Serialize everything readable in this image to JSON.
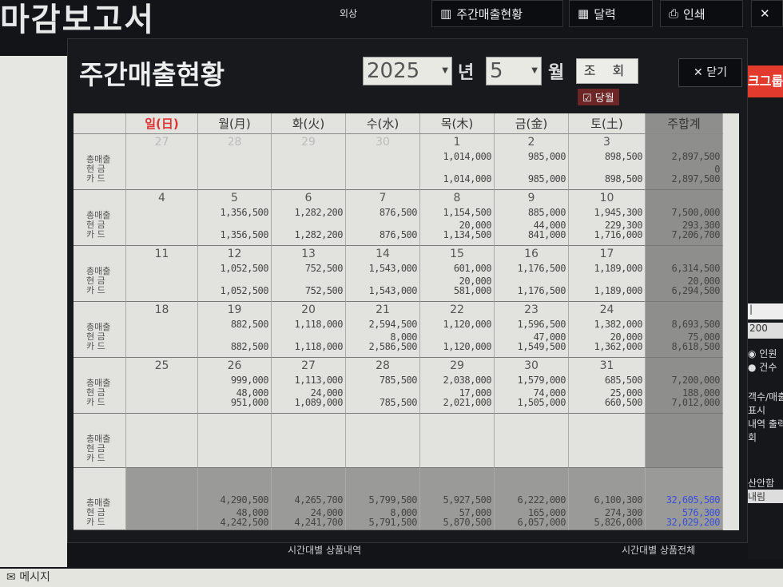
{
  "app": {
    "title": "마감보고서",
    "subtab": "외상",
    "buttons": [
      {
        "icon": "bar-chart-icon",
        "label": "주간매출현황"
      },
      {
        "icon": "calendar-icon",
        "label": "달력"
      },
      {
        "icon": "printer-icon",
        "label": "인쇄"
      }
    ],
    "red_button": "크그룹"
  },
  "dialog": {
    "title": "주간매출현황",
    "year": "2025",
    "year_unit": "년",
    "month": "5",
    "month_unit": "월",
    "query_label": "조 회",
    "current_month_label": "당월",
    "current_month_checked": true,
    "close_label": "닫기"
  },
  "table": {
    "headers": [
      "일(日)",
      "월(月)",
      "화(火)",
      "수(水)",
      "목(木)",
      "금(金)",
      "토(土)",
      "주합계"
    ],
    "row_labels": [
      "총매출",
      "현 금",
      "카 드"
    ],
    "weeks": [
      {
        "dates": [
          "27",
          "28",
          "29",
          "30",
          "1",
          "2",
          "3"
        ],
        "prev_month_count": 4,
        "days": [
          null,
          null,
          null,
          null,
          [
            "1,014,000",
            "",
            "1,014,000"
          ],
          [
            "985,000",
            "",
            "985,000"
          ],
          [
            "898,500",
            "",
            "898,500"
          ]
        ],
        "total": [
          "2,897,500",
          "0",
          "2,897,500"
        ]
      },
      {
        "dates": [
          "4",
          "5",
          "6",
          "7",
          "8",
          "9",
          "10"
        ],
        "days": [
          null,
          [
            "1,356,500",
            "",
            "1,356,500"
          ],
          [
            "1,282,200",
            "",
            "1,282,200"
          ],
          [
            "876,500",
            "",
            "876,500"
          ],
          [
            "1,154,500",
            "20,000",
            "1,134,500"
          ],
          [
            "885,000",
            "44,000",
            "841,000"
          ],
          [
            "1,945,300",
            "229,300",
            "1,716,000"
          ]
        ],
        "total": [
          "7,500,000",
          "293,300",
          "7,206,700"
        ]
      },
      {
        "dates": [
          "11",
          "12",
          "13",
          "14",
          "15",
          "16",
          "17"
        ],
        "days": [
          null,
          [
            "1,052,500",
            "",
            "1,052,500"
          ],
          [
            "752,500",
            "",
            "752,500"
          ],
          [
            "1,543,000",
            "",
            "1,543,000"
          ],
          [
            "601,000",
            "20,000",
            "581,000"
          ],
          [
            "1,176,500",
            "",
            "1,176,500"
          ],
          [
            "1,189,000",
            "",
            "1,189,000"
          ]
        ],
        "total": [
          "6,314,500",
          "20,000",
          "6,294,500"
        ]
      },
      {
        "dates": [
          "18",
          "19",
          "20",
          "21",
          "22",
          "23",
          "24"
        ],
        "days": [
          null,
          [
            "882,500",
            "",
            "882,500"
          ],
          [
            "1,118,000",
            "",
            "1,118,000"
          ],
          [
            "2,594,500",
            "8,000",
            "2,586,500"
          ],
          [
            "1,120,000",
            "",
            "1,120,000"
          ],
          [
            "1,596,500",
            "47,000",
            "1,549,500"
          ],
          [
            "1,382,000",
            "20,000",
            "1,362,000"
          ]
        ],
        "total": [
          "8,693,500",
          "75,000",
          "8,618,500"
        ]
      },
      {
        "dates": [
          "25",
          "26",
          "27",
          "28",
          "29",
          "30",
          "31"
        ],
        "days": [
          null,
          [
            "999,000",
            "48,000",
            "951,000"
          ],
          [
            "1,113,000",
            "24,000",
            "1,089,000"
          ],
          [
            "785,500",
            "",
            "785,500"
          ],
          [
            "2,038,000",
            "17,000",
            "2,021,000"
          ],
          [
            "1,579,000",
            "74,000",
            "1,505,000"
          ],
          [
            "685,500",
            "25,000",
            "660,500"
          ]
        ],
        "total": [
          "7,200,000",
          "188,000",
          "7,012,000"
        ]
      },
      {
        "dates": [
          "",
          "",
          "",
          "",
          "",
          "",
          ""
        ],
        "days": [
          null,
          null,
          null,
          null,
          null,
          null,
          null
        ],
        "total": null
      }
    ],
    "totals": {
      "days": [
        null,
        [
          "4,290,500",
          "48,000",
          "4,242,500"
        ],
        [
          "4,265,700",
          "24,000",
          "4,241,700"
        ],
        [
          "5,799,500",
          "8,000",
          "5,791,500"
        ],
        [
          "5,927,500",
          "57,000",
          "5,870,500"
        ],
        [
          "6,222,000",
          "165,000",
          "6,057,000"
        ],
        [
          "6,100,300",
          "274,300",
          "5,826,000"
        ]
      ],
      "total": [
        "32,605,500",
        "576,300",
        "32,029,200"
      ],
      "grand_total_color": "#3a4fd8"
    }
  },
  "right_panel": {
    "field": "200",
    "radio": [
      "인원",
      "건수"
    ],
    "texts": [
      "객수/매출",
      "표시",
      "내역 출력",
      "회",
      "산안함",
      "내림"
    ]
  },
  "bottom": {
    "message": "메시지",
    "left_tab": "시간대별 상품내역",
    "right_tab": "시간대별 상품전체"
  }
}
